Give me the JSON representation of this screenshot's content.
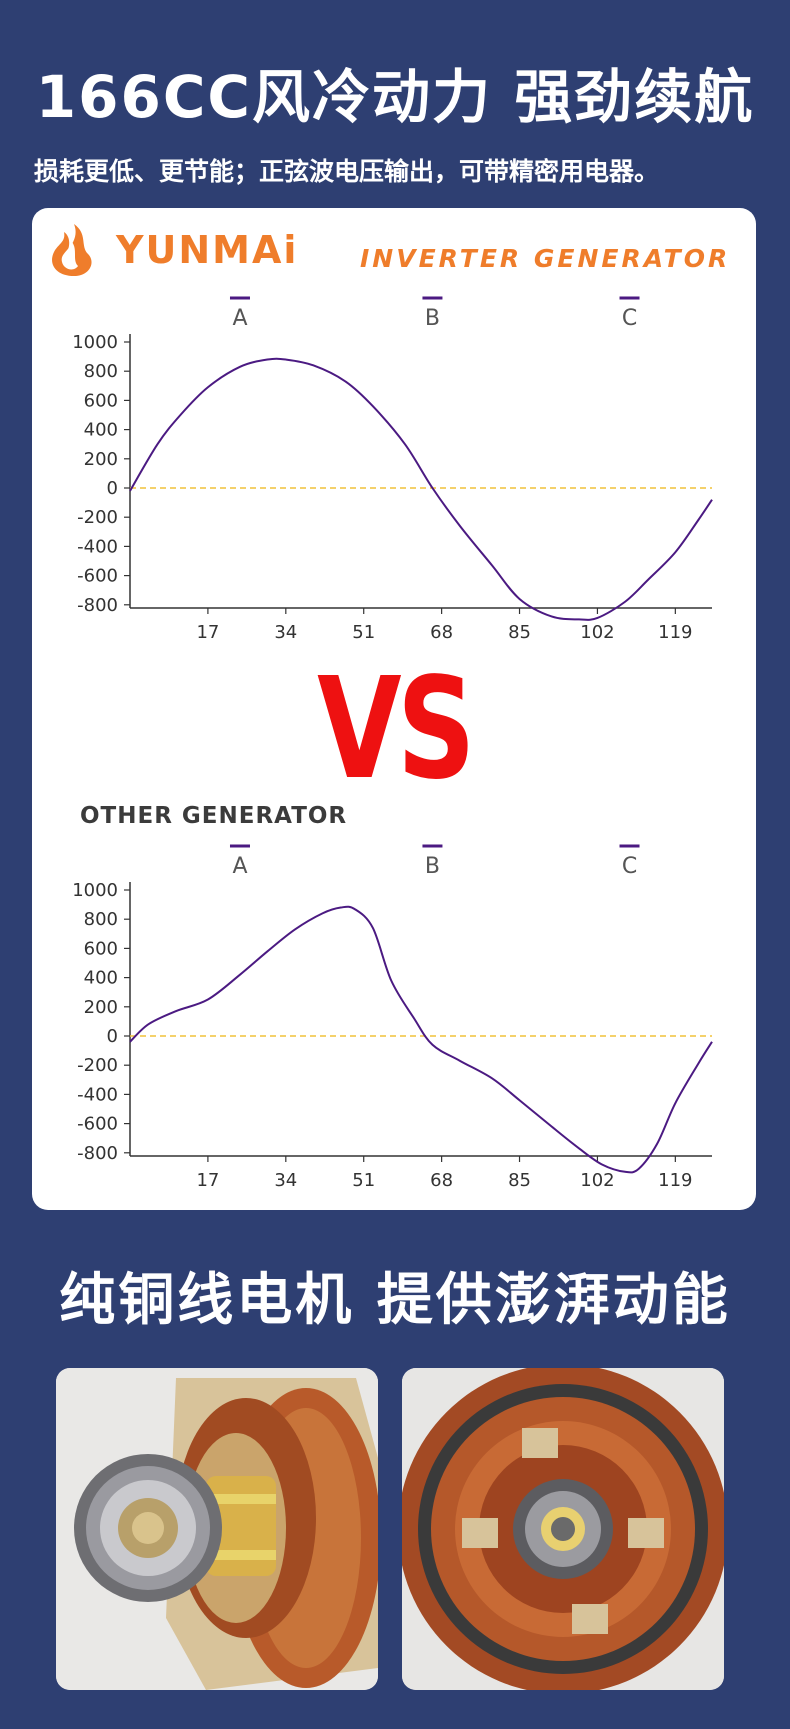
{
  "header": {
    "title": "166CC风冷动力  强劲续航",
    "subtitle": "损耗更低、更节能；正弦波电压输出，可带精密用电器。"
  },
  "brand": {
    "name": "YUNMAi",
    "tagline": "INVERTER GENERATOR",
    "color": "#ef7d2b"
  },
  "vs_label": "VS",
  "other_title": "OTHER GENERATOR",
  "section2_title": "纯铜线电机 提供澎湃动能",
  "colors": {
    "background": "#2e3f72",
    "curve": "#4b1a82",
    "zero_line": "#f0c23a",
    "vs": "#ee1111",
    "marker": "#4b1a82"
  },
  "chart_data": [
    {
      "type": "line",
      "title": "INVERTER GENERATOR",
      "x_ticks": [
        17,
        34,
        51,
        68,
        85,
        102,
        119
      ],
      "y_ticks": [
        1000,
        800,
        600,
        400,
        200,
        0,
        -200,
        -400,
        -600,
        -800
      ],
      "xlim": [
        0,
        127
      ],
      "ylim": [
        -1000,
        1000
      ],
      "markers": [
        {
          "label": "A",
          "x": 24
        },
        {
          "label": "B",
          "x": 66
        },
        {
          "label": "C",
          "x": 109
        }
      ],
      "series": [
        {
          "x": [
            0,
            6,
            11,
            17,
            24,
            30,
            34,
            40,
            47,
            53,
            60,
            66,
            72,
            79,
            85,
            92,
            98,
            102,
            108,
            113,
            119,
            124,
            127
          ],
          "y": [
            -20,
            300,
            500,
            690,
            830,
            880,
            880,
            840,
            730,
            560,
            300,
            0,
            -260,
            -530,
            -760,
            -880,
            -900,
            -890,
            -780,
            -630,
            -440,
            -220,
            -80
          ]
        }
      ]
    },
    {
      "type": "line",
      "title": "OTHER GENERATOR",
      "x_ticks": [
        17,
        34,
        51,
        68,
        85,
        102,
        119
      ],
      "y_ticks": [
        1000,
        800,
        600,
        400,
        200,
        0,
        -200,
        -400,
        -600,
        -800
      ],
      "xlim": [
        0,
        127
      ],
      "ylim": [
        -1000,
        1000
      ],
      "markers": [
        {
          "label": "A",
          "x": 24
        },
        {
          "label": "B",
          "x": 66
        },
        {
          "label": "C",
          "x": 109
        }
      ],
      "series": [
        {
          "x": [
            0,
            4,
            10,
            17,
            24,
            30,
            36,
            42,
            46,
            49,
            53,
            57,
            62,
            66,
            72,
            79,
            85,
            92,
            98,
            103,
            108,
            111,
            115,
            119,
            124,
            127
          ],
          "y": [
            -40,
            80,
            170,
            250,
            420,
            580,
            730,
            840,
            880,
            870,
            740,
            380,
            120,
            -60,
            -170,
            -290,
            -440,
            -620,
            -770,
            -880,
            -930,
            -910,
            -740,
            -460,
            -190,
            -40
          ]
        }
      ]
    }
  ]
}
